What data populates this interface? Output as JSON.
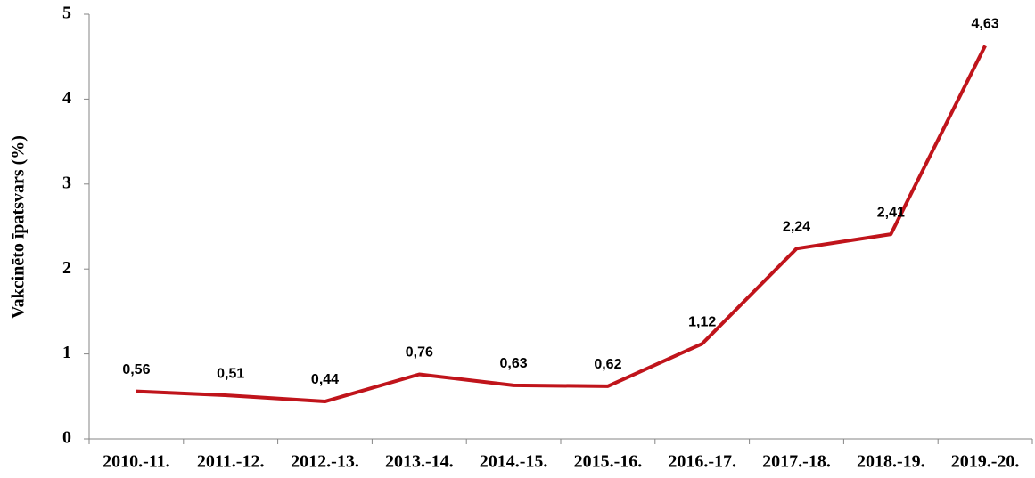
{
  "chart_data": {
    "type": "line",
    "y_label": "Vakcinēto īpatsvars (%)",
    "categories": [
      "2010.-11.",
      "2011.-12.",
      "2012.-13.",
      "2013.-14.",
      "2014.-15.",
      "2015.-16.",
      "2016.-17.",
      "2017.-18.",
      "2018.-19.",
      "2019.-20."
    ],
    "series": [
      {
        "color": "#c0141b",
        "values": [
          0.56,
          0.51,
          0.44,
          0.76,
          0.63,
          0.62,
          1.12,
          2.24,
          2.41,
          4.63
        ],
        "value_labels": [
          "0,56",
          "0,51",
          "0,44",
          "0,76",
          "0,63",
          "0,62",
          "1,12",
          "2,24",
          "2,41",
          "4,63"
        ]
      }
    ],
    "ylim": [
      0,
      5
    ],
    "yticks": [
      0,
      1,
      2,
      3,
      4,
      5
    ],
    "grid": false
  }
}
